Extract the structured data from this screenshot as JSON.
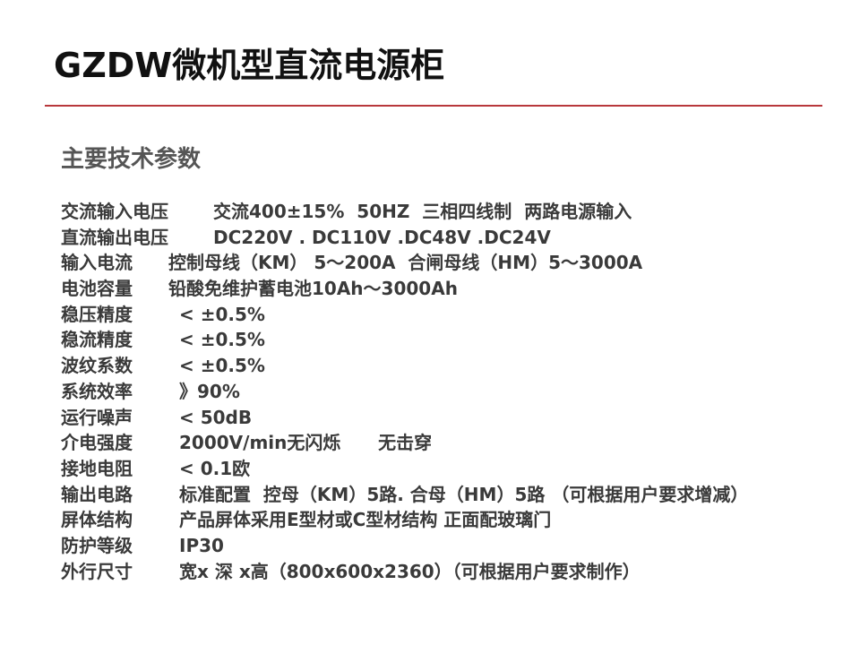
{
  "title": "GZDW微机型直流电源柜",
  "subtitle": "主要技术参数",
  "accent_color": "#b8383c",
  "params": [
    {
      "label": "交流输入电压",
      "value": "交流400±15%  50HZ  三相四线制  两路电源输入"
    },
    {
      "label": "直流输出电压",
      "value": "DC220V . DC110V .DC48V .DC24V"
    },
    {
      "label": "输入电流",
      "value": "控制母线（KM） 5～200A  合闸母线（HM）5～3000A"
    },
    {
      "label": "电池容量",
      "value": "铅酸免维护蓄电池10Ah～3000Ah"
    },
    {
      "label": "稳压精度",
      "value": "< ±0.5%"
    },
    {
      "label": "稳流精度",
      "value": "< ±0.5%"
    },
    {
      "label": "波纹系数",
      "value": "< ±0.5%"
    },
    {
      "label": "系统效率",
      "value": "》90%"
    },
    {
      "label": "运行噪声",
      "value": "< 50dB"
    },
    {
      "label": "介电强度",
      "value": "2000V/min无闪烁      无击穿"
    },
    {
      "label": "接地电阻",
      "value": "< 0.1欧"
    },
    {
      "label": "输出电路",
      "value": "标准配置  控母（KM）5路. 合母（HM）5路 （可根据用户要求增减）"
    },
    {
      "label": "屏体结构",
      "value": "产品屏体采用E型材或C型材结构 正面配玻璃门"
    },
    {
      "label": "防护等级",
      "value": "IP30"
    },
    {
      "label": "外行尺寸",
      "value": "宽x 深 x高（800x600x2360）（可根据用户要求制作）"
    }
  ]
}
